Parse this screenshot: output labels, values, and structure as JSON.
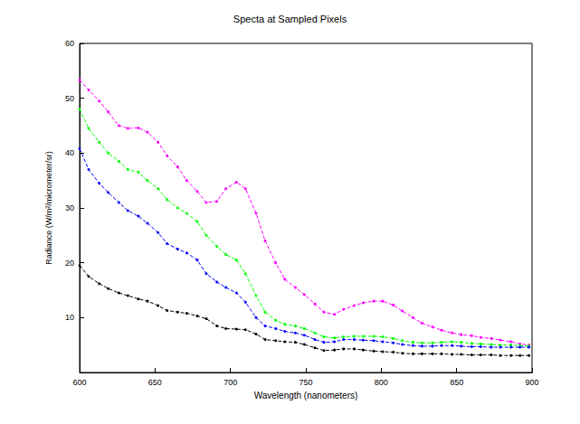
{
  "chart_data": {
    "type": "line",
    "title": "Specta at Sampled Pixels",
    "x_label": "Wavelength (nanometers)",
    "y_label": "Radiance (W/m²/micrometer/sr)",
    "x": [
      600,
      606,
      613,
      619,
      626,
      632,
      639,
      645,
      652,
      658,
      665,
      671,
      678,
      684,
      691,
      697,
      704,
      710,
      717,
      723,
      730,
      736,
      743,
      749,
      756,
      762,
      769,
      775,
      782,
      788,
      795,
      801,
      808,
      814,
      821,
      827,
      834,
      840,
      847,
      853,
      860,
      866,
      873,
      879,
      886,
      892,
      898
    ],
    "series": [
      {
        "color": "#ff00ff",
        "marker": "circle",
        "line_style": "dashed",
        "values": [
          53.3,
          51.5,
          49.5,
          47.5,
          45,
          44.5,
          44.6,
          43.8,
          42,
          39.5,
          37.5,
          35,
          33,
          31,
          31.2,
          33.5,
          34.7,
          33.5,
          29,
          24,
          20,
          17,
          15.5,
          14.2,
          12.5,
          11,
          10.6,
          11.5,
          12.2,
          12.7,
          13,
          13,
          12.3,
          11.2,
          10,
          9,
          8.3,
          7.7,
          7.2,
          6.9,
          6.7,
          6.4,
          6.2,
          5.9,
          5.6,
          5.2,
          5.0
        ]
      },
      {
        "color": "#00ff00",
        "marker": "circle",
        "line_style": "dashed",
        "values": [
          48,
          44.5,
          42,
          40,
          38.5,
          37,
          36.5,
          35,
          33.5,
          31.5,
          30,
          29,
          27.5,
          25,
          23,
          21.5,
          20.5,
          18,
          14,
          11,
          9.5,
          8.8,
          8.5,
          8,
          7.2,
          6.5,
          6.3,
          6.5,
          6.6,
          6.6,
          6.6,
          6.5,
          6.2,
          5.8,
          5.5,
          5.4,
          5.4,
          5.5,
          5.6,
          5.5,
          5.3,
          5.2,
          5.1,
          5.0,
          5.0,
          4.9,
          4.8
        ]
      },
      {
        "color": "#0000ff",
        "marker": "circle",
        "line_style": "dashed",
        "values": [
          40.8,
          37,
          34.5,
          32.8,
          31,
          29.5,
          28.5,
          27.2,
          25.5,
          23.5,
          22.5,
          21.8,
          20.5,
          18,
          16.5,
          15.5,
          14.5,
          12.8,
          10,
          8.5,
          8,
          7.5,
          7.2,
          6.8,
          6.0,
          5.5,
          5.6,
          6.0,
          6.0,
          5.9,
          5.8,
          5.6,
          5.4,
          5.1,
          4.9,
          4.8,
          4.8,
          4.9,
          4.9,
          4.8,
          4.7,
          4.7,
          4.6,
          4.6,
          4.6,
          4.6,
          4.6
        ]
      },
      {
        "color": "#000000",
        "marker": "circle",
        "line_style": "dashed",
        "values": [
          19.5,
          17.5,
          16.2,
          15.3,
          14.5,
          14,
          13.4,
          13,
          12.2,
          11.3,
          11,
          10.8,
          10.3,
          9.8,
          8.5,
          8,
          7.9,
          7.8,
          7,
          6,
          5.8,
          5.6,
          5.5,
          5.1,
          4.5,
          4.0,
          4.1,
          4.3,
          4.3,
          4.1,
          3.9,
          3.8,
          3.7,
          3.5,
          3.4,
          3.4,
          3.4,
          3.4,
          3.3,
          3.3,
          3.2,
          3.2,
          3.2,
          3.1,
          3.1,
          3.1,
          3.1
        ]
      }
    ],
    "xlim": [
      600,
      900
    ],
    "xticks": [
      600,
      650,
      700,
      750,
      800,
      850,
      900
    ],
    "ylim": [
      0,
      60
    ],
    "yticks": [
      10,
      20,
      30,
      40,
      50,
      60
    ],
    "grid": false
  }
}
